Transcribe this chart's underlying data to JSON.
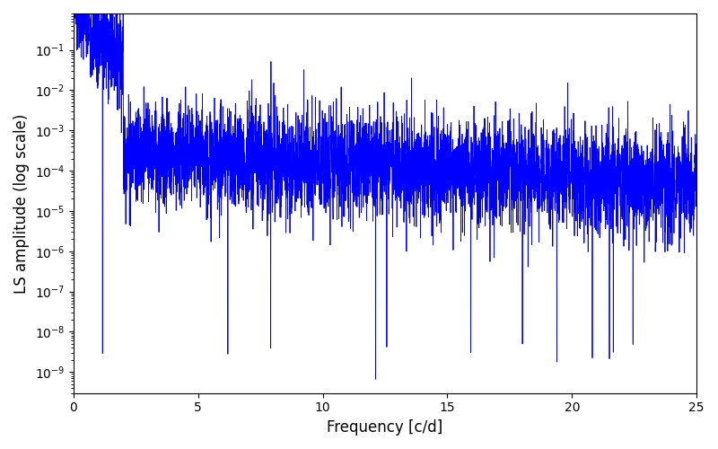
{
  "xlabel": "Frequency [c/d]",
  "ylabel": "LS amplitude (log scale)",
  "line_color": "#0000FF",
  "line_width": 0.6,
  "xmin": 0,
  "xmax": 25,
  "ymin": 3e-10,
  "ymax": 0.8,
  "freq_step": 0.005,
  "seed": 7,
  "background_color": "#ffffff",
  "figsize": [
    8.0,
    5.0
  ],
  "dpi": 100
}
